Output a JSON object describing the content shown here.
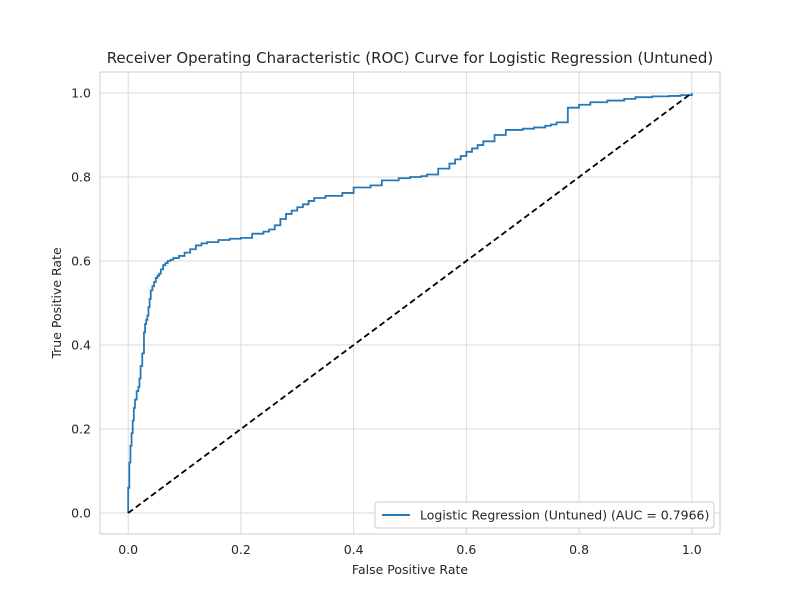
{
  "chart_data": {
    "type": "line",
    "title": "Receiver Operating Characteristic (ROC) Curve for Logistic Regression (Untuned)",
    "xlabel": "False Positive Rate",
    "ylabel": "True Positive Rate",
    "xlim": [
      -0.05,
      1.05
    ],
    "ylim": [
      -0.05,
      1.05
    ],
    "xticks": [
      0.0,
      0.2,
      0.4,
      0.6,
      0.8,
      1.0
    ],
    "yticks": [
      0.0,
      0.2,
      0.4,
      0.6,
      0.8,
      1.0
    ],
    "xtick_labels": [
      "0.0",
      "0.2",
      "0.4",
      "0.6",
      "0.8",
      "1.0"
    ],
    "ytick_labels": [
      "0.0",
      "0.2",
      "0.4",
      "0.6",
      "0.8",
      "1.0"
    ],
    "grid": true,
    "legend_position": "lower-right",
    "series": [
      {
        "name": "Logistic Regression (Untuned) (AUC = 0.7966)",
        "color": "#2878b5",
        "style": "solid",
        "x": [
          0.0,
          0.0,
          0.002,
          0.004,
          0.006,
          0.008,
          0.01,
          0.012,
          0.015,
          0.018,
          0.02,
          0.022,
          0.025,
          0.028,
          0.03,
          0.032,
          0.034,
          0.036,
          0.038,
          0.04,
          0.043,
          0.046,
          0.049,
          0.052,
          0.055,
          0.058,
          0.062,
          0.066,
          0.07,
          0.075,
          0.08,
          0.09,
          0.1,
          0.11,
          0.12,
          0.13,
          0.14,
          0.16,
          0.18,
          0.2,
          0.22,
          0.24,
          0.25,
          0.26,
          0.27,
          0.28,
          0.29,
          0.3,
          0.31,
          0.32,
          0.33,
          0.35,
          0.38,
          0.4,
          0.43,
          0.45,
          0.48,
          0.5,
          0.52,
          0.53,
          0.55,
          0.57,
          0.58,
          0.59,
          0.6,
          0.61,
          0.62,
          0.63,
          0.65,
          0.67,
          0.7,
          0.72,
          0.74,
          0.75,
          0.76,
          0.78,
          0.8,
          0.82,
          0.85,
          0.88,
          0.9,
          0.93,
          0.96,
          0.98,
          1.0
        ],
        "y": [
          0.0,
          0.06,
          0.12,
          0.16,
          0.19,
          0.22,
          0.25,
          0.27,
          0.29,
          0.3,
          0.32,
          0.35,
          0.38,
          0.43,
          0.45,
          0.46,
          0.47,
          0.49,
          0.51,
          0.53,
          0.54,
          0.55,
          0.56,
          0.565,
          0.57,
          0.58,
          0.59,
          0.595,
          0.6,
          0.603,
          0.607,
          0.612,
          0.62,
          0.628,
          0.637,
          0.642,
          0.645,
          0.65,
          0.653,
          0.655,
          0.665,
          0.67,
          0.675,
          0.685,
          0.7,
          0.712,
          0.72,
          0.728,
          0.735,
          0.743,
          0.75,
          0.755,
          0.762,
          0.775,
          0.78,
          0.792,
          0.797,
          0.8,
          0.802,
          0.806,
          0.82,
          0.832,
          0.842,
          0.85,
          0.86,
          0.868,
          0.876,
          0.885,
          0.9,
          0.912,
          0.915,
          0.918,
          0.922,
          0.925,
          0.93,
          0.965,
          0.972,
          0.978,
          0.982,
          0.986,
          0.99,
          0.992,
          0.993,
          0.995,
          1.0
        ]
      },
      {
        "name": "",
        "color": "#000000",
        "style": "dashed",
        "x": [
          0.0,
          1.0
        ],
        "y": [
          0.0,
          1.0
        ]
      }
    ]
  }
}
